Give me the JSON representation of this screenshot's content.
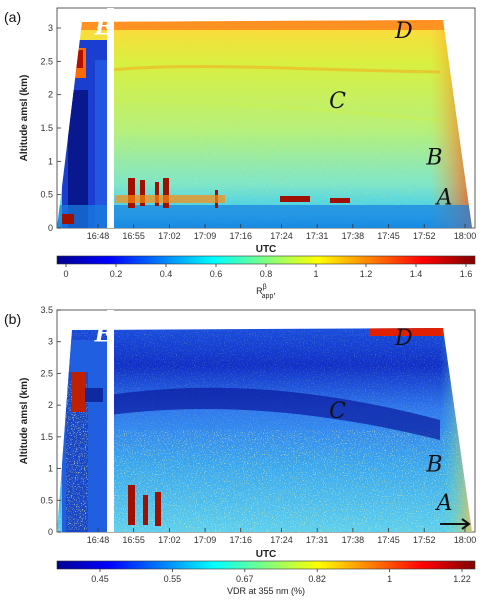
{
  "chart_data": [
    {
      "type": "heatmap",
      "panel_label": "(a)",
      "ylabel": "Altitude amsl (km)",
      "xlabel": "UTC",
      "xticks": [
        "16:48",
        "16:55",
        "17:02",
        "17:09",
        "17:16",
        "17:24",
        "17:31",
        "17:38",
        "17:45",
        "17:52",
        "18:00"
      ],
      "yticks": [
        "0",
        "0.5",
        "1",
        "1.5",
        "2",
        "2.5",
        "3"
      ],
      "ylim": [
        0,
        3.3
      ],
      "colorbar": {
        "label": "R",
        "label_sup": "β",
        "label_sub": "app",
        "label_suffix": ",",
        "ticks": [
          "0",
          "0.2",
          "0.4",
          "0.6",
          "0.8",
          "1",
          "1.2",
          "1.4",
          "1.6"
        ],
        "range": [
          0,
          1.6
        ],
        "colormap": "jet"
      },
      "annotations": [
        {
          "text": "E",
          "color": "#ffffff",
          "x": "16:49",
          "y": 2.9
        },
        {
          "text": "D",
          "color": "#111111",
          "x": "17:48",
          "y": 2.85
        },
        {
          "text": "C",
          "color": "#111111",
          "x": "17:35",
          "y": 1.8
        },
        {
          "text": "B",
          "color": "#111111",
          "x": "17:54",
          "y": 0.95
        },
        {
          "text": "A",
          "color": "#111111",
          "x": "17:56",
          "y": 0.35
        }
      ]
    },
    {
      "type": "heatmap",
      "panel_label": "(b)",
      "ylabel": "Altitude amsl (km)",
      "xlabel": "UTC",
      "xticks": [
        "16:48",
        "16:55",
        "17:02",
        "17:09",
        "17:16",
        "17:24",
        "17:31",
        "17:38",
        "17:45",
        "17:52",
        "18:00"
      ],
      "yticks": [
        "0",
        "0.5",
        "1",
        "1.5",
        "2",
        "2.5",
        "3",
        "3.5"
      ],
      "ylim": [
        0,
        3.5
      ],
      "colorbar": {
        "label": "VDR at 355 nm (%)",
        "ticks": [
          "0.45",
          "0.55",
          "0.67",
          "0.82",
          "1",
          "1.22"
        ],
        "colormap": "jet"
      },
      "annotations": [
        {
          "text": "E",
          "color": "#ffffff",
          "x": "16:49",
          "y": 3.0
        },
        {
          "text": "D",
          "color": "#111111",
          "x": "17:48",
          "y": 2.95
        },
        {
          "text": "C",
          "color": "#111111",
          "x": "17:35",
          "y": 1.8
        },
        {
          "text": "B",
          "color": "#111111",
          "x": "17:54",
          "y": 0.95
        },
        {
          "text": "A",
          "color": "#111111",
          "x": "17:56",
          "y": 0.35
        }
      ]
    }
  ]
}
